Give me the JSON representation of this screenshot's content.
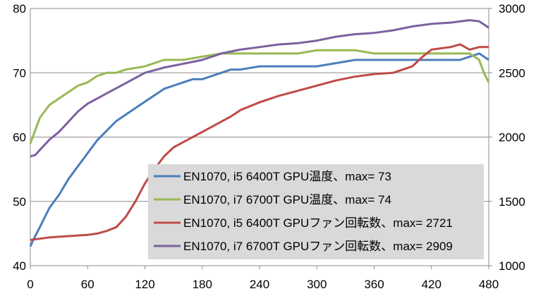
{
  "chart_data": {
    "type": "line",
    "title": "",
    "xlabel": "",
    "ylabel": "",
    "y2label": "",
    "xlim": [
      0,
      480
    ],
    "ylim": [
      40,
      80
    ],
    "y2lim": [
      1000,
      3000
    ],
    "x_ticks": [
      "0",
      "60",
      "120",
      "180",
      "240",
      "300",
      "360",
      "420",
      "480"
    ],
    "y_ticks": [
      "40",
      "50",
      "60",
      "70",
      "80"
    ],
    "y2_ticks": [
      "1000",
      "1500",
      "2000",
      "2500",
      "3000"
    ],
    "grid": "horizontal",
    "legend_position": "bottom-center",
    "series": [
      {
        "name": "EN1070, i5 6400T GPU温度、max= 73",
        "axis": "left",
        "color": "#4a7ebb",
        "x": [
          0,
          3,
          10,
          20,
          30,
          40,
          50,
          60,
          70,
          80,
          90,
          100,
          110,
          120,
          130,
          140,
          150,
          160,
          170,
          180,
          190,
          200,
          210,
          220,
          240,
          260,
          280,
          300,
          320,
          340,
          360,
          380,
          400,
          420,
          440,
          450,
          460,
          470,
          475,
          480
        ],
        "values": [
          43,
          44,
          46,
          49,
          51,
          53.5,
          55.5,
          57.5,
          59.5,
          61,
          62.5,
          63.5,
          64.5,
          65.5,
          66.5,
          67.5,
          68,
          68.5,
          69,
          69,
          69.5,
          70,
          70.5,
          70.5,
          71,
          71,
          71,
          71,
          71.5,
          72,
          72,
          72,
          72,
          72,
          72,
          72,
          72.5,
          73,
          72.5,
          72
        ]
      },
      {
        "name": "EN1070, i7 6700T GPU温度、max= 74",
        "axis": "left",
        "color": "#98b954",
        "x": [
          0,
          5,
          10,
          20,
          30,
          40,
          50,
          60,
          70,
          80,
          90,
          100,
          120,
          140,
          160,
          180,
          200,
          220,
          240,
          260,
          280,
          300,
          320,
          340,
          360,
          380,
          400,
          420,
          440,
          460,
          470,
          475,
          480
        ],
        "values": [
          59,
          61,
          63,
          65,
          66,
          67,
          68,
          68.5,
          69.5,
          70,
          70,
          70.5,
          71,
          72,
          72,
          72.5,
          73,
          73,
          73,
          73,
          73,
          73.5,
          73.5,
          73.5,
          73,
          73,
          73,
          73,
          73,
          73,
          72,
          70,
          68.5
        ]
      },
      {
        "name": "EN1070, i5 6400T GPUファン回転数、max=  2721",
        "axis": "right",
        "color": "#be4b48",
        "x": [
          0,
          10,
          20,
          40,
          60,
          70,
          80,
          90,
          100,
          110,
          120,
          130,
          140,
          150,
          160,
          170,
          180,
          190,
          200,
          210,
          220,
          230,
          240,
          260,
          280,
          300,
          320,
          340,
          360,
          380,
          400,
          410,
          420,
          440,
          450,
          460,
          470,
          480
        ],
        "values": [
          1200,
          1210,
          1220,
          1230,
          1240,
          1250,
          1270,
          1300,
          1380,
          1500,
          1640,
          1750,
          1850,
          1920,
          1960,
          2000,
          2040,
          2080,
          2120,
          2160,
          2210,
          2240,
          2270,
          2320,
          2360,
          2400,
          2440,
          2470,
          2490,
          2500,
          2550,
          2620,
          2680,
          2700,
          2721,
          2680,
          2700,
          2700
        ]
      },
      {
        "name": "EN1070, i7 6700T GPUファン回転数、max=  2909",
        "axis": "right",
        "color": "#7d60a0",
        "x": [
          0,
          5,
          10,
          20,
          30,
          40,
          50,
          60,
          70,
          80,
          90,
          100,
          110,
          120,
          140,
          160,
          180,
          200,
          220,
          240,
          260,
          280,
          300,
          320,
          340,
          360,
          380,
          400,
          420,
          440,
          460,
          470,
          480
        ],
        "values": [
          1850,
          1860,
          1900,
          1980,
          2040,
          2120,
          2200,
          2260,
          2300,
          2340,
          2380,
          2420,
          2460,
          2500,
          2540,
          2570,
          2600,
          2650,
          2680,
          2700,
          2720,
          2730,
          2750,
          2780,
          2800,
          2810,
          2830,
          2860,
          2880,
          2890,
          2909,
          2900,
          2850
        ]
      }
    ]
  }
}
